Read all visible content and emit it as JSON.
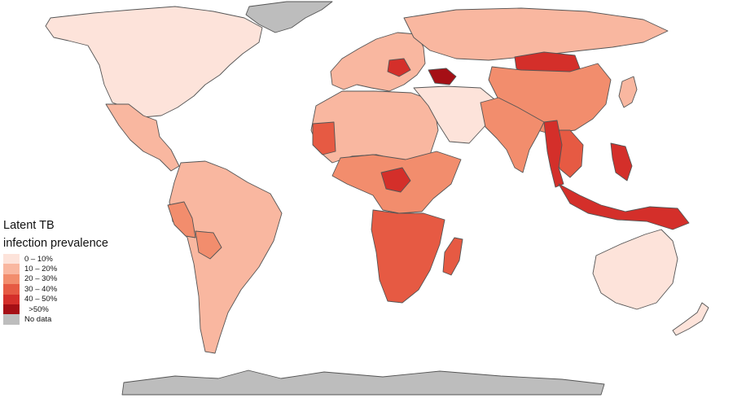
{
  "legend": {
    "title_line1": "Latent TB",
    "title_line2": "infection prevalence",
    "classes": [
      {
        "label": "0 – 10%",
        "color": "#fde3da"
      },
      {
        "label": "10 – 20%",
        "color": "#f9b7a0"
      },
      {
        "label": "20 – 30%",
        "color": "#f28d6d"
      },
      {
        "label": "30 – 40%",
        "color": "#e65a43"
      },
      {
        "label": "40 – 50%",
        "color": "#d42f2a"
      },
      {
        "label": "  >50%",
        "color": "#a50f15"
      },
      {
        "label": "No data",
        "color": "#bdbdbd"
      }
    ]
  },
  "regions": [
    {
      "name": "Greenland",
      "class": "No data"
    },
    {
      "name": "Antarctica",
      "class": "No data"
    },
    {
      "name": "North America",
      "class": "0 – 10%"
    },
    {
      "name": "Mexico and Central America",
      "class": "10 – 20%"
    },
    {
      "name": "South America",
      "class": "10 – 20%"
    },
    {
      "name": "Peru",
      "class": "20 – 30%"
    },
    {
      "name": "Bolivia",
      "class": "20 – 30%"
    },
    {
      "name": "Europe",
      "class": "10 – 20%"
    },
    {
      "name": "Romania",
      "class": "40 – 50%"
    },
    {
      "name": "Georgia",
      "class": "  >50%"
    },
    {
      "name": "Russia",
      "class": "10 – 20%"
    },
    {
      "name": "North Africa",
      "class": "10 – 20%"
    },
    {
      "name": "Middle East",
      "class": "0 – 10%"
    },
    {
      "name": "Mauritania",
      "class": "30 – 40%"
    },
    {
      "name": "Central Africa",
      "class": "20 – 30%"
    },
    {
      "name": "Central African Republic",
      "class": "40 – 50%"
    },
    {
      "name": "Southern Africa",
      "class": "30 – 40%"
    },
    {
      "name": "Madagascar",
      "class": "30 – 40%"
    },
    {
      "name": "Mongolia",
      "class": "40 – 50%"
    },
    {
      "name": "China",
      "class": "20 – 30%"
    },
    {
      "name": "South Asia",
      "class": "20 – 30%"
    },
    {
      "name": "Mainland Southeast Asia",
      "class": "30 – 40%"
    },
    {
      "name": "Myanmar and Thailand",
      "class": "40 – 50%"
    },
    {
      "name": "Indonesia",
      "class": "40 – 50%"
    },
    {
      "name": "Philippines",
      "class": "40 – 50%"
    },
    {
      "name": "Japan",
      "class": "10 – 20%"
    },
    {
      "name": "Australia",
      "class": "0 – 10%"
    },
    {
      "name": "New Zealand",
      "class": "0 – 10%"
    }
  ]
}
